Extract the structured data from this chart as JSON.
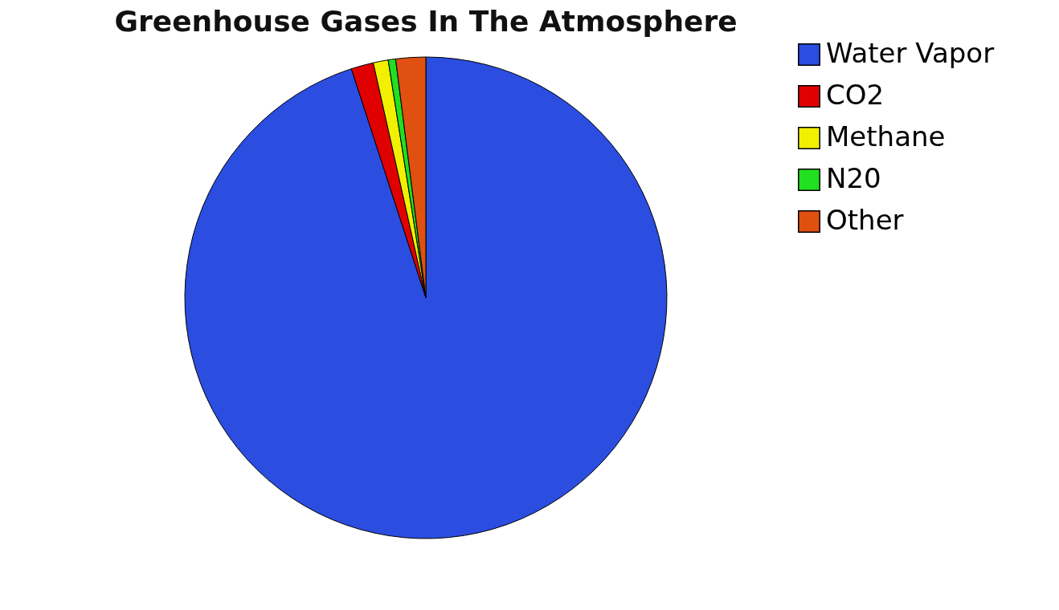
{
  "chart_data": {
    "type": "pie",
    "title": "Greenhouse Gases In The Atmosphere",
    "categories": [
      "Water Vapor",
      "CO2",
      "Methane",
      "N20",
      "Other"
    ],
    "values": [
      95,
      1.5,
      1,
      0.5,
      2
    ],
    "colors": [
      "#2b4de0",
      "#e00000",
      "#f0f000",
      "#20e020",
      "#e05010"
    ],
    "legend": "right"
  }
}
